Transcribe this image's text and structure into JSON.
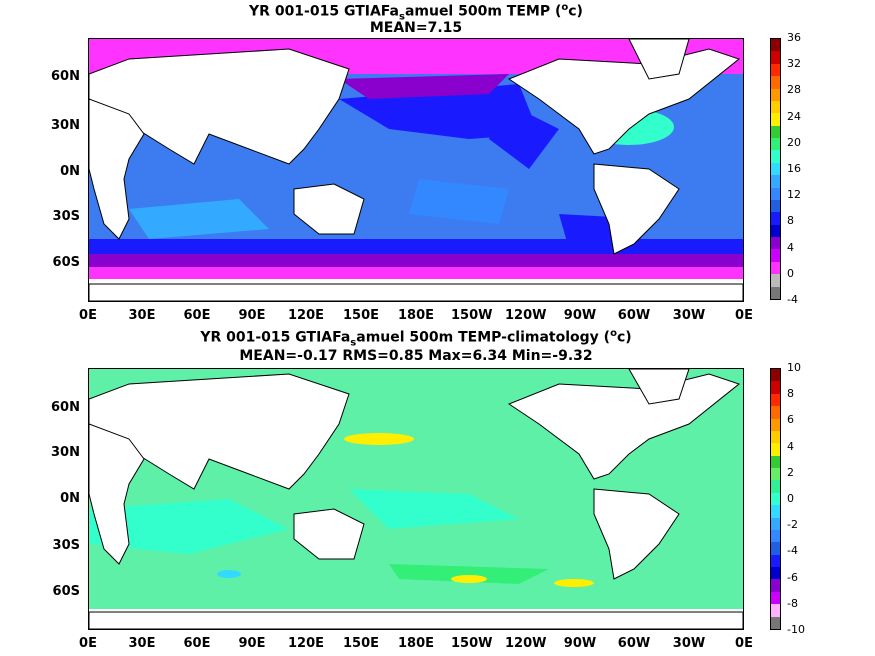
{
  "top": {
    "title_line1_a": "YR 001-015 GTIAFa",
    "title_line1_sub": "s",
    "title_line1_b": "amuel 500m TEMP (",
    "title_line1_sup": "o",
    "title_line1_c": "c)",
    "title_line2": "MEAN=7.15",
    "colorbar_labels": [
      "36",
      "32",
      "28",
      "24",
      "20",
      "16",
      "12",
      "8",
      "4",
      "0",
      "-4"
    ],
    "colorbar_colors": [
      "#8b0000",
      "#cc0000",
      "#ff2a00",
      "#ff6a00",
      "#ff9900",
      "#ffcc00",
      "#ffee00",
      "#33cc33",
      "#33ee77",
      "#33ffcc",
      "#33d9ff",
      "#33aaff",
      "#3388ff",
      "#1f5fe0",
      "#1a1aff",
      "#0000cc",
      "#8a00cc",
      "#cc00ff",
      "#ff33ff",
      "#bbbbbb",
      "#777777"
    ]
  },
  "bottom": {
    "title_line1_a": "YR 001-015 GTIAFa",
    "title_line1_sub": "s",
    "title_line1_b": "amuel 500m TEMP-climatology (",
    "title_line1_sup": "o",
    "title_line1_c": "c)",
    "title_line2": "MEAN=-0.17   RMS=0.85   Max=6.34   Min=-9.32",
    "colorbar_labels": [
      "10",
      "8",
      "6",
      "4",
      "2",
      "0",
      "-2",
      "-4",
      "-6",
      "-8",
      "-10"
    ],
    "colorbar_colors": [
      "#8b0000",
      "#cc0000",
      "#ff2a00",
      "#ff6a00",
      "#ff9900",
      "#ffcc00",
      "#ffee00",
      "#33cc33",
      "#66ee66",
      "#33ee99",
      "#33ffcc",
      "#33d9ff",
      "#33aaff",
      "#3388ff",
      "#1f5fe0",
      "#1a1aff",
      "#0000cc",
      "#8a00cc",
      "#cc00ff",
      "#ffb3ff",
      "#777777"
    ]
  },
  "y_ticks": [
    "60N",
    "30N",
    "0N",
    "30S",
    "60S"
  ],
  "x_ticks": [
    "0E",
    "30E",
    "60E",
    "90E",
    "120E",
    "150E",
    "180E",
    "150W",
    "120W",
    "90W",
    "60W",
    "30W",
    "0E"
  ],
  "colors": {
    "land": "#ffffff",
    "top_ocean": "#3d7cf0",
    "bottom_ocean": "#5ff0a8"
  }
}
